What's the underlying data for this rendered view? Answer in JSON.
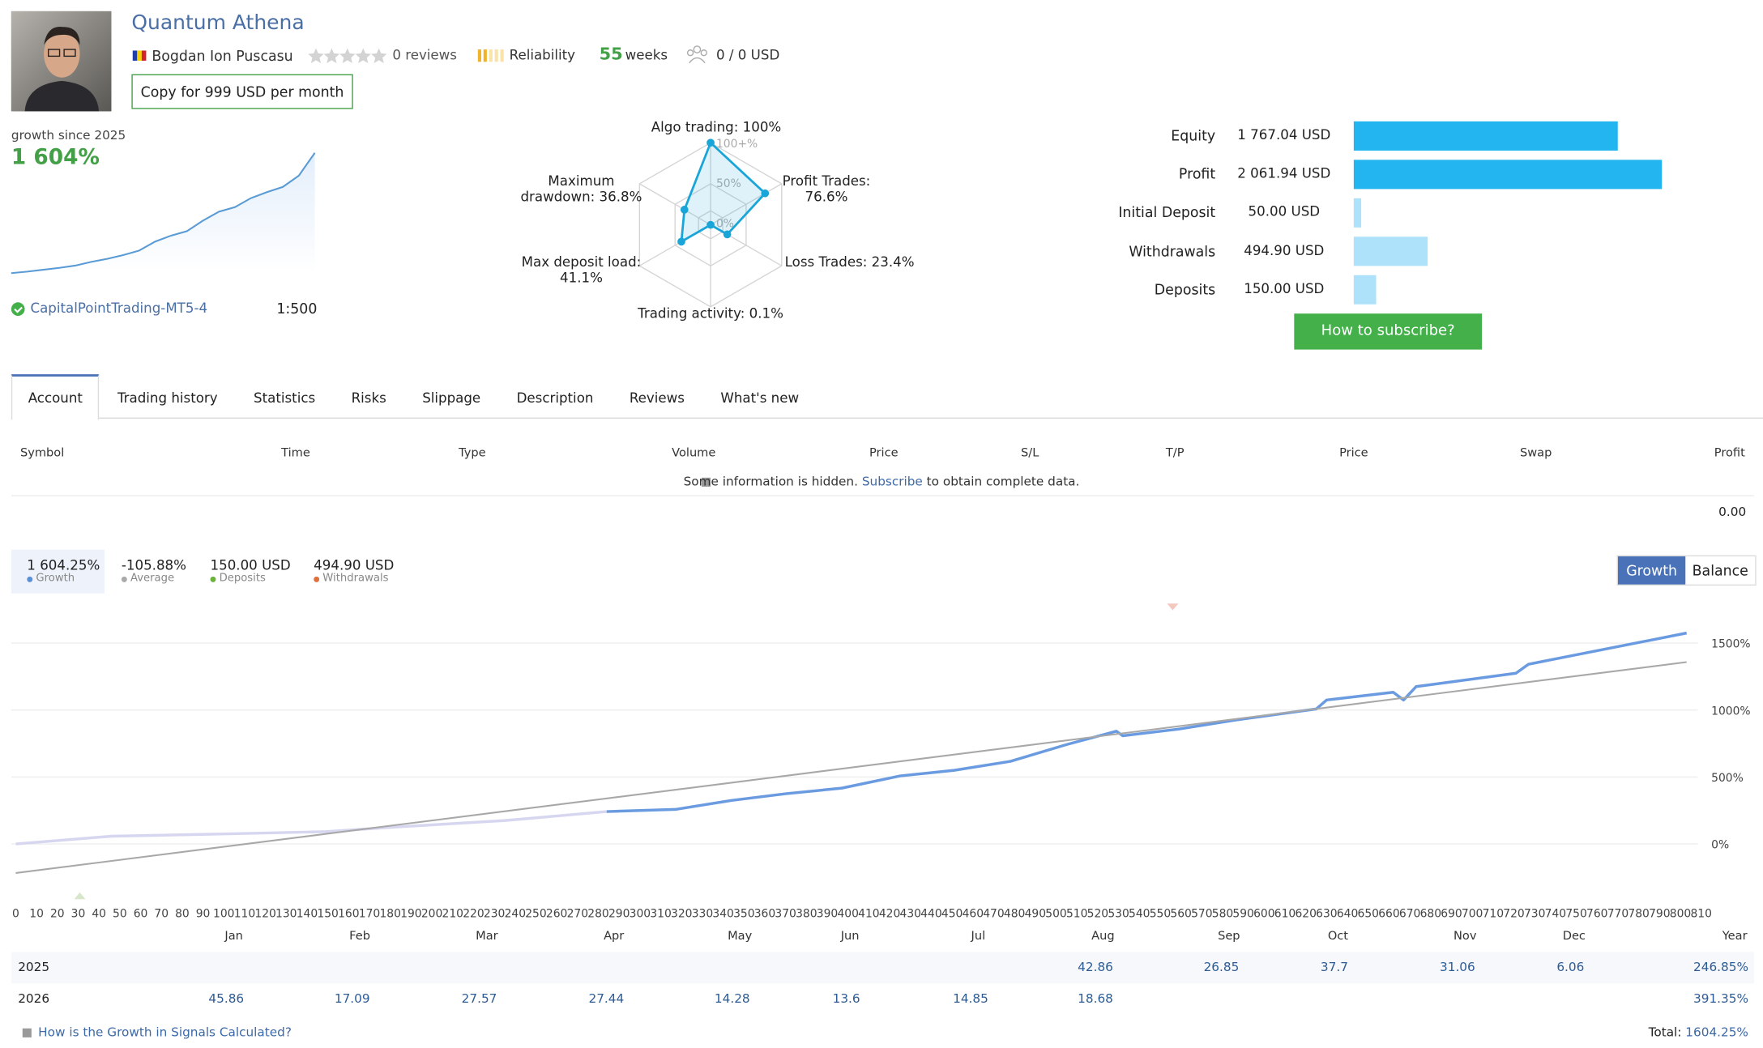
{
  "header": {
    "title": "Quantum Athena",
    "author": "Bogdan Ion Puscasu",
    "reviews": "0 reviews",
    "reliability": "Reliability",
    "weeks_value": "55",
    "weeks_unit": "weeks",
    "subscribers": "0 / 0 USD",
    "copy_button": "Copy for 999 USD per month"
  },
  "growth_summary": {
    "caption": "growth since 2025",
    "value": "1 604%",
    "sparkline": [
      0,
      20,
      45,
      70,
      100,
      150,
      190,
      240,
      300,
      420,
      500,
      560,
      700,
      820,
      880,
      1000,
      1080,
      1150,
      1300,
      1604
    ],
    "server": "CapitalPointTrading-MT5-4",
    "leverage": "1:500"
  },
  "radar": {
    "ring_labels": [
      "100+%",
      "50%",
      "0%"
    ],
    "axes": [
      {
        "label": "Algo trading: 100%",
        "value": 100
      },
      {
        "label": "Profit Trades: 76.6%",
        "value": 76.6
      },
      {
        "label": "Loss Trades: 23.4%",
        "value": 23.4
      },
      {
        "label": "Trading activity: 0.1%",
        "value": 0.1
      },
      {
        "label": "Max deposit load: 41.1%",
        "value": 41.1
      },
      {
        "label": "Maximum drawdown: 36.8%",
        "value": 36.8
      }
    ]
  },
  "balance": {
    "items": [
      {
        "name": "Equity",
        "label": "1 767.04 USD",
        "value": 1767.04,
        "color": "#22b5ef"
      },
      {
        "name": "Profit",
        "label": "2 061.94 USD",
        "value": 2061.94,
        "color": "#22b5ef"
      },
      {
        "name": "Initial Deposit",
        "label": "50.00 USD",
        "value": 50,
        "color": "#aee2fb"
      },
      {
        "name": "Withdrawals",
        "label": "494.90 USD",
        "value": 494.9,
        "color": "#aee2fb"
      },
      {
        "name": "Deposits",
        "label": "150.00 USD",
        "value": 150,
        "color": "#aee2fb"
      }
    ],
    "subscribe_button": "How to subscribe?"
  },
  "tabs": [
    "Account",
    "Trading history",
    "Statistics",
    "Risks",
    "Slippage",
    "Description",
    "Reviews",
    "What's new"
  ],
  "trades_table": {
    "columns": [
      "Symbol",
      "Time",
      "Type",
      "Volume",
      "Price",
      "S/L",
      "T/P",
      "Price",
      "Swap",
      "Profit"
    ],
    "notice_before": "Some information is hidden.",
    "notice_link": "Subscribe",
    "notice_after": "to obtain complete data.",
    "total_profit": "0.00"
  },
  "stats": [
    {
      "value": "1 604.25%",
      "label": "Growth",
      "color": "#5b8fd6"
    },
    {
      "value": "-105.88%",
      "label": "Average",
      "color": "#aaaaaa"
    },
    {
      "value": "150.00 USD",
      "label": "Deposits",
      "color": "#6cb33e"
    },
    {
      "value": "494.90 USD",
      "label": "Withdrawals",
      "color": "#e0703c"
    }
  ],
  "chart_buttons": [
    "Growth",
    "Balance"
  ],
  "chart_data": {
    "type": "line",
    "xlim": [
      0,
      810
    ],
    "ylim": [
      -370,
      1770
    ],
    "xticks": [
      0,
      10,
      20,
      30,
      40,
      50,
      60,
      70,
      80,
      90,
      100,
      110,
      120,
      130,
      140,
      150,
      160,
      170,
      180,
      190,
      200,
      210,
      220,
      230,
      240,
      250,
      260,
      270,
      280,
      290,
      300,
      310,
      320,
      330,
      340,
      350,
      360,
      370,
      380,
      390,
      400,
      410,
      420,
      430,
      440,
      450,
      460,
      470,
      480,
      490,
      500,
      510,
      520,
      530,
      540,
      550,
      560,
      570,
      580,
      590,
      600,
      610,
      620,
      630,
      640,
      650,
      660,
      670,
      680,
      690,
      700,
      710,
      720,
      730,
      740,
      750,
      760,
      770,
      780,
      790,
      800,
      810
    ],
    "yticks": [
      {
        "value": 0,
        "label": "0%"
      },
      {
        "value": 500,
        "label": "500%"
      },
      {
        "value": 1000,
        "label": "1000%"
      },
      {
        "value": 1500,
        "label": "1500%"
      }
    ],
    "series": [
      {
        "color": "#d6d6f0",
        "x": [
          0,
          46,
          100,
          149,
          181,
          235,
          284
        ],
        "values": [
          0,
          58,
          75,
          92,
          125,
          175,
          242
        ]
      },
      {
        "color": "#6a9be0",
        "x": [
          284,
          317,
          344,
          370,
          397,
          425,
          451,
          478,
          505,
          529,
          532,
          559,
          586,
          625,
          630,
          662,
          667,
          673,
          721,
          727,
          776,
          803
        ],
        "values": [
          242,
          258,
          325,
          375,
          417,
          508,
          550,
          617,
          742,
          842,
          808,
          858,
          925,
          1008,
          1075,
          1133,
          1075,
          1175,
          1275,
          1342,
          1492,
          1575
        ]
      },
      {
        "color": "#a8a8a8",
        "x": [
          0,
          803
        ],
        "values": [
          -217,
          1358
        ]
      }
    ]
  },
  "monthly_table": {
    "months": [
      "Jan",
      "Feb",
      "Mar",
      "Apr",
      "May",
      "Jun",
      "Jul",
      "Aug",
      "Sep",
      "Oct",
      "Nov",
      "Dec"
    ],
    "total_header": "Year",
    "rows": [
      {
        "year": "2025",
        "cells": [
          null,
          null,
          null,
          null,
          null,
          null,
          null,
          "42.86",
          "26.85",
          "37.7",
          "31.06",
          "6.06"
        ],
        "total": "246.85%"
      },
      {
        "year": "2026",
        "cells": [
          "45.86",
          "17.09",
          "27.57",
          "27.44",
          "14.28",
          "13.6",
          "14.85",
          "18.68",
          null,
          null,
          null,
          null
        ],
        "total": "391.35%"
      }
    ]
  },
  "footer": {
    "link": "How is the Growth in Signals Calculated?",
    "total_label": "Total:",
    "total_value": "1604.25%"
  }
}
